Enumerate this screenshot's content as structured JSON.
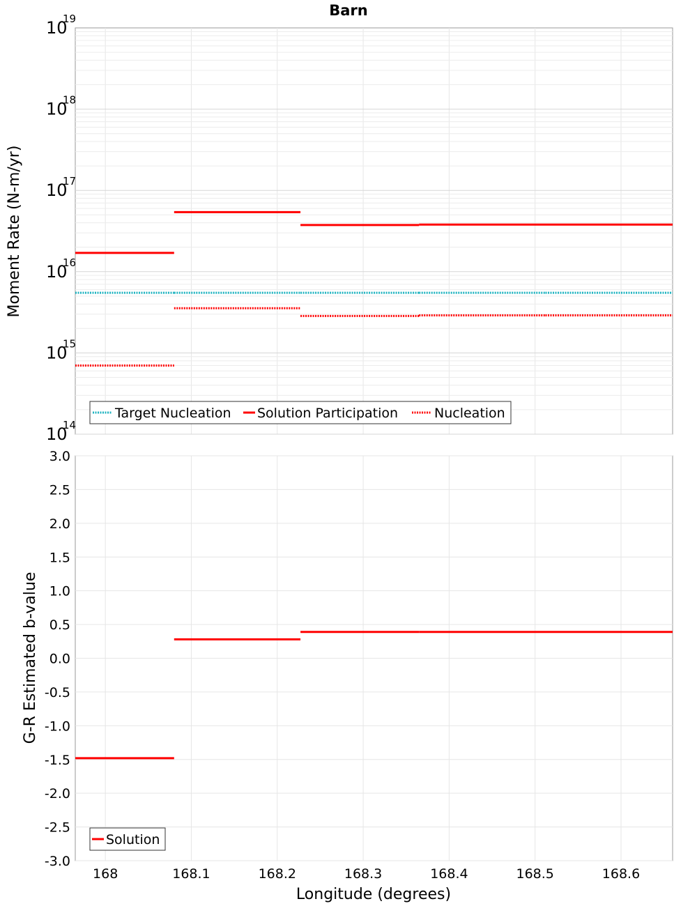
{
  "chart_data": [
    {
      "type": "line",
      "title": "Barn",
      "ylabel": "Moment Rate (N-m/yr)",
      "xlabel": "",
      "yscale": "log",
      "ylim": [
        100000000000000.0,
        1e+19
      ],
      "xlim": [
        167.965,
        168.66
      ],
      "y_ticks": [
        {
          "base": "10",
          "exp": "14"
        },
        {
          "base": "10",
          "exp": "15"
        },
        {
          "base": "10",
          "exp": "16"
        },
        {
          "base": "10",
          "exp": "17"
        },
        {
          "base": "10",
          "exp": "18"
        },
        {
          "base": "10",
          "exp": "19"
        }
      ],
      "grid": true,
      "legend_position": "bottom-left",
      "series": [
        {
          "name": "Target Nucleation",
          "style": "dotted",
          "color": "#1fb3c0",
          "segments": [
            [
              167.965,
              168.08,
              5500000000000000.0
            ],
            [
              168.08,
              168.227,
              5500000000000000.0
            ],
            [
              168.227,
              168.365,
              5500000000000000.0
            ],
            [
              168.365,
              168.512,
              5500000000000000.0
            ],
            [
              168.512,
              168.66,
              5500000000000000.0
            ]
          ]
        },
        {
          "name": "Solution Participation",
          "style": "solid",
          "color": "#ff0000",
          "segments": [
            [
              167.965,
              168.08,
              1.7e+16
            ],
            [
              168.08,
              168.227,
              5.4e+16
            ],
            [
              168.227,
              168.365,
              3.75e+16
            ],
            [
              168.365,
              168.512,
              3.8e+16
            ],
            [
              168.512,
              168.66,
              3.8e+16
            ]
          ]
        },
        {
          "name": "Nucleation",
          "style": "dotted",
          "color": "#ff0000",
          "segments": [
            [
              167.965,
              168.08,
              700000000000000.0
            ],
            [
              168.08,
              168.227,
              3550000000000000.0
            ],
            [
              168.227,
              168.365,
              2850000000000000.0
            ],
            [
              168.365,
              168.512,
              2900000000000000.0
            ],
            [
              168.512,
              168.66,
              2900000000000000.0
            ]
          ]
        }
      ]
    },
    {
      "type": "line",
      "title": "",
      "ylabel": "G-R Estimated b-value",
      "xlabel": "Longitude (degrees)",
      "ylim": [
        -3.0,
        3.0
      ],
      "xlim": [
        167.965,
        168.66
      ],
      "y_ticks": [
        "-3.0",
        "-2.5",
        "-2.0",
        "-1.5",
        "-1.0",
        "-0.5",
        "0.0",
        "0.5",
        "1.0",
        "1.5",
        "2.0",
        "2.5",
        "3.0"
      ],
      "x_ticks": [
        "168",
        "168.1",
        "168.2",
        "168.3",
        "168.4",
        "168.5",
        "168.6"
      ],
      "grid": true,
      "legend_position": "bottom-left",
      "series": [
        {
          "name": "Solution",
          "style": "solid",
          "color": "#ff0000",
          "segments": [
            [
              167.965,
              168.08,
              -1.48
            ],
            [
              168.08,
              168.227,
              0.28
            ],
            [
              168.227,
              168.365,
              0.39
            ],
            [
              168.365,
              168.512,
              0.39
            ],
            [
              168.512,
              168.66,
              0.39
            ]
          ]
        }
      ]
    }
  ]
}
